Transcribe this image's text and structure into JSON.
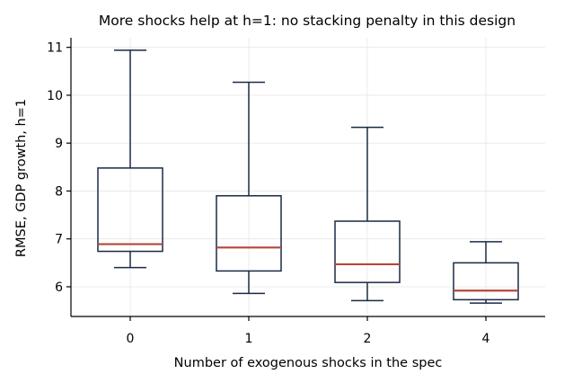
{
  "chart_data": {
    "type": "box",
    "title": "More shocks help at h=1: no stacking penalty in this design",
    "xlabel": "Number of exogenous shocks in the spec",
    "ylabel": "RMSE, GDP growth, h=1",
    "categories": [
      "0",
      "1",
      "2",
      "4"
    ],
    "boxes": [
      {
        "category": "0",
        "whisker_low": 6.4,
        "q1": 6.74,
        "median": 6.89,
        "q3": 8.48,
        "whisker_high": 10.94
      },
      {
        "category": "1",
        "whisker_low": 5.86,
        "q1": 6.33,
        "median": 6.82,
        "q3": 7.9,
        "whisker_high": 10.27
      },
      {
        "category": "2",
        "whisker_low": 5.71,
        "q1": 6.09,
        "median": 6.47,
        "q3": 7.37,
        "whisker_high": 9.33
      },
      {
        "category": "4",
        "whisker_low": 5.66,
        "q1": 5.73,
        "median": 5.92,
        "q3": 6.5,
        "whisker_high": 6.94
      }
    ],
    "ylim": [
      5.38,
      11.2
    ],
    "yticks": [
      6,
      7,
      8,
      9,
      10,
      11
    ],
    "grid": true,
    "colors": {
      "box_edge": "#1a2a44",
      "median": "#b5473a",
      "grid": "#e6e6e6"
    }
  }
}
